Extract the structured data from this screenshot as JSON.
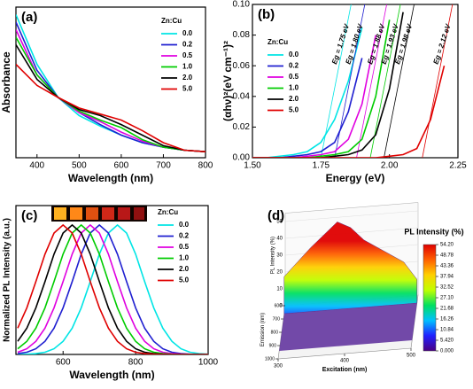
{
  "chart_data": [
    {
      "type": "line",
      "label": "(a)",
      "x_label": "Wavelength (nm)",
      "y_label": "Absorbance",
      "legend_title": "Zn:Cu",
      "x": [
        350,
        400,
        450,
        500,
        550,
        600,
        650,
        700,
        750,
        800
      ],
      "xlim": [
        350,
        800
      ],
      "xticks": [
        400,
        500,
        600,
        700,
        800
      ],
      "ylim": [
        0,
        1
      ],
      "series": [
        {
          "name": "0.0",
          "color": "#00e5e5",
          "values": [
            0.95,
            0.62,
            0.4,
            0.28,
            0.21,
            0.15,
            0.1,
            0.07,
            0.05,
            0.04
          ]
        },
        {
          "name": "0.2",
          "color": "#1f1fd0",
          "values": [
            0.9,
            0.58,
            0.4,
            0.3,
            0.22,
            0.15,
            0.1,
            0.07,
            0.05,
            0.04
          ]
        },
        {
          "name": "0.5",
          "color": "#e000e0",
          "values": [
            0.85,
            0.55,
            0.4,
            0.3,
            0.24,
            0.17,
            0.11,
            0.07,
            0.05,
            0.04
          ]
        },
        {
          "name": "1.0",
          "color": "#00cc00",
          "values": [
            0.8,
            0.55,
            0.4,
            0.31,
            0.25,
            0.2,
            0.12,
            0.07,
            0.05,
            0.04
          ]
        },
        {
          "name": "2.0",
          "color": "#000000",
          "values": [
            0.75,
            0.52,
            0.4,
            0.32,
            0.28,
            0.22,
            0.15,
            0.08,
            0.05,
            0.04
          ]
        },
        {
          "name": "5.0",
          "color": "#e00000",
          "values": [
            0.62,
            0.48,
            0.4,
            0.33,
            0.29,
            0.25,
            0.18,
            0.1,
            0.05,
            0.04
          ]
        }
      ]
    },
    {
      "type": "line",
      "label": "(b)",
      "x_label": "Energy (eV)",
      "y_label": "(αhν)²(eV cm⁻¹)²",
      "legend_title": "Zn:Cu",
      "x": [
        1.5,
        1.55,
        1.6,
        1.65,
        1.7,
        1.75,
        1.8,
        1.85,
        1.9,
        1.95,
        2.0,
        2.05,
        2.1,
        2.15,
        2.2,
        2.25
      ],
      "xlim": [
        1.5,
        2.25
      ],
      "xticks": [
        {
          "value": 1.5,
          "label": "1.50"
        },
        {
          "value": 1.75,
          "label": "1.75"
        },
        {
          "value": 2.0,
          "label": "2.00"
        },
        {
          "value": 2.25,
          "label": "2.25"
        }
      ],
      "ylim": [
        0,
        0.1
      ],
      "yticks": [
        {
          "value": 0,
          "label": "0.00"
        },
        {
          "value": 0.02,
          "label": "0.02"
        },
        {
          "value": 0.04,
          "label": "0.04"
        },
        {
          "value": 0.06,
          "label": "0.06"
        },
        {
          "value": 0.08,
          "label": "0.08"
        },
        {
          "value": 0.1,
          "label": "0.10"
        }
      ],
      "series": [
        {
          "name": "0.0",
          "color": "#00e5e5",
          "eg": 1.75,
          "eg_label": "Eg = 1.75 eV",
          "values": [
            0,
            0,
            0.001,
            0.002,
            0.004,
            0.01,
            0.025,
            0.05,
            0.085,
            null,
            null,
            null,
            null,
            null,
            null,
            null
          ]
        },
        {
          "name": "0.2",
          "color": "#1f1fd0",
          "eg": 1.8,
          "eg_label": "Eg = 1.80 eV",
          "values": [
            0,
            0,
            0,
            0.001,
            0.002,
            0.004,
            0.01,
            0.03,
            0.065,
            null,
            null,
            null,
            null,
            null,
            null,
            null
          ]
        },
        {
          "name": "0.5",
          "color": "#e000e0",
          "eg": 1.88,
          "eg_label": "Eg = 1.88 eV",
          "values": [
            0,
            0,
            0,
            0,
            0.001,
            0.002,
            0.004,
            0.012,
            0.035,
            0.08,
            null,
            null,
            null,
            null,
            null,
            null
          ]
        },
        {
          "name": "1.0",
          "color": "#00cc00",
          "eg": 1.93,
          "eg_label": "Eg = 1.93 eV",
          "values": [
            0,
            0,
            0,
            0,
            0,
            0.001,
            0.002,
            0.004,
            0.012,
            0.04,
            0.09,
            null,
            null,
            null,
            null,
            null
          ]
        },
        {
          "name": "2.0",
          "color": "#000000",
          "eg": 1.98,
          "eg_label": "Eg = 1.98 eV",
          "values": [
            0,
            0,
            0,
            0,
            0,
            0,
            0.001,
            0.002,
            0.005,
            0.015,
            0.045,
            0.095,
            null,
            null,
            null,
            null
          ]
        },
        {
          "name": "5.0",
          "color": "#e00000",
          "eg": 2.12,
          "eg_label": "Eg = 2.12 eV",
          "values": [
            0,
            0,
            0,
            0,
            0,
            0,
            0,
            0,
            0,
            0,
            0.001,
            0.002,
            0.006,
            0.025,
            0.06,
            null
          ]
        }
      ]
    },
    {
      "type": "line",
      "label": "(c)",
      "x_label": "Wavelength (nm)",
      "y_label": "Normalized PL Intensity (a.u.)",
      "legend_title": "Zn:Cu",
      "x": [
        475,
        500,
        525,
        550,
        575,
        600,
        625,
        650,
        675,
        700,
        725,
        750,
        775,
        800,
        825,
        850,
        875,
        900,
        925,
        950,
        975,
        1000
      ],
      "xlim": [
        470,
        1000
      ],
      "xticks": [
        600,
        800,
        1000
      ],
      "ylim": [
        0,
        1.15
      ],
      "series": [
        {
          "name": "0.0",
          "color": "#00e5e5",
          "values": [
            0,
            0.002,
            0.006,
            0.017,
            0.044,
            0.101,
            0.203,
            0.36,
            0.563,
            0.775,
            0.938,
            1,
            0.938,
            0.775,
            0.563,
            0.36,
            0.203,
            0.101,
            0.044,
            0.017,
            0.006,
            0.002
          ]
        },
        {
          "name": "0.2",
          "color": "#1f1fd0",
          "values": [
            0.006,
            0.017,
            0.044,
            0.101,
            0.203,
            0.36,
            0.563,
            0.775,
            0.938,
            1,
            0.938,
            0.775,
            0.563,
            0.36,
            0.203,
            0.101,
            0.044,
            0.017,
            0.006,
            0.002,
            0,
            0
          ]
        },
        {
          "name": "0.5",
          "color": "#e000e0",
          "values": [
            0.017,
            0.044,
            0.101,
            0.203,
            0.36,
            0.563,
            0.775,
            0.938,
            1,
            0.938,
            0.775,
            0.563,
            0.36,
            0.203,
            0.101,
            0.044,
            0.017,
            0.006,
            0.002,
            0,
            0,
            0
          ]
        },
        {
          "name": "1.0",
          "color": "#00cc00",
          "values": [
            0.044,
            0.101,
            0.203,
            0.36,
            0.563,
            0.775,
            0.938,
            1,
            0.938,
            0.775,
            0.563,
            0.36,
            0.203,
            0.101,
            0.044,
            0.017,
            0.006,
            0.002,
            0,
            0,
            0,
            0
          ]
        },
        {
          "name": "2.0",
          "color": "#000000",
          "values": [
            0.101,
            0.203,
            0.36,
            0.563,
            0.775,
            0.938,
            1,
            0.938,
            0.775,
            0.563,
            0.36,
            0.203,
            0.101,
            0.044,
            0.017,
            0.006,
            0.002,
            0,
            0,
            0,
            0,
            0
          ]
        },
        {
          "name": "5.0",
          "color": "#e00000",
          "values": [
            0.203,
            0.36,
            0.563,
            0.775,
            0.938,
            1,
            0.938,
            0.775,
            0.563,
            0.36,
            0.203,
            0.101,
            0.044,
            0.017,
            0.006,
            0.002,
            0,
            0,
            0,
            0,
            0,
            0
          ]
        }
      ]
    },
    {
      "type": "surface",
      "label": "(d)",
      "x_label": "Excitation (nm)",
      "depth_label": "Emission (nm)",
      "z_label": "PL Intensity (%)",
      "colorbar_title": "PL Intensity (%)",
      "x": [
        300,
        320,
        340,
        360,
        380,
        400,
        420,
        440,
        460,
        480,
        500
      ],
      "values": [
        22,
        30,
        38,
        45,
        52,
        48,
        40,
        35,
        30,
        25,
        14
      ],
      "xlim": [
        300,
        500
      ],
      "xticks": [
        300,
        400,
        500
      ],
      "depthlim": [
        600,
        1000
      ],
      "depthticks": [
        600,
        700,
        800,
        900,
        1000
      ],
      "zlim": [
        0,
        55
      ],
      "zticks": [
        0,
        10,
        20,
        30,
        40,
        50
      ],
      "colorbar_lim": [
        0,
        54.2
      ],
      "colorbar_ticks": [
        {
          "value": 0,
          "label": "0.000"
        },
        {
          "value": 5.42,
          "label": "5.420"
        },
        10.84,
        16.26,
        21.68,
        {
          "value": 27.1,
          "label": "27.10"
        },
        32.52,
        37.94,
        43.36,
        48.78,
        {
          "value": 54.2,
          "label": "54.20"
        }
      ]
    }
  ]
}
